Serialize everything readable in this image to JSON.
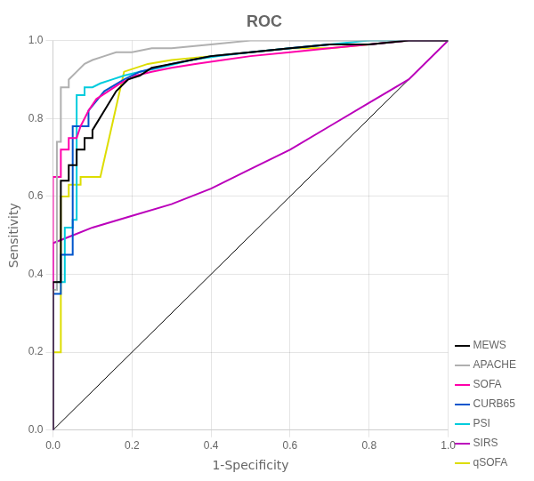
{
  "chart_data": {
    "type": "line",
    "title": "ROC",
    "xlabel": "1-Specificity",
    "ylabel": "Sensitivity",
    "xlim": [
      0,
      1
    ],
    "ylim": [
      0,
      1
    ],
    "xticks": [
      {
        "value": 0,
        "label": "0.0"
      },
      0.2,
      0.4,
      0.6,
      0.8,
      {
        "value": 1,
        "label": "1.0"
      }
    ],
    "yticks": [
      {
        "value": 0,
        "label": "0.0"
      },
      0.2,
      0.4,
      0.6,
      0.8,
      {
        "value": 1,
        "label": "1.0"
      }
    ],
    "grid": true,
    "legend": "lower right",
    "series": [
      {
        "color": "#000000",
        "x": [
          0,
          1
        ],
        "values": [
          0,
          1
        ]
      },
      {
        "name": "MEWS",
        "color": "#000000",
        "x": [
          0.0,
          0.0,
          0.02,
          0.02,
          0.04,
          0.04,
          0.06,
          0.06,
          0.08,
          0.08,
          0.1,
          0.1,
          0.13,
          0.16,
          0.19,
          0.22,
          0.25,
          0.3,
          0.35,
          0.4,
          0.5,
          0.6,
          0.7,
          0.8,
          0.9,
          1.0
        ],
        "values": [
          0.0,
          0.38,
          0.38,
          0.64,
          0.64,
          0.68,
          0.68,
          0.72,
          0.72,
          0.75,
          0.75,
          0.77,
          0.82,
          0.87,
          0.9,
          0.91,
          0.93,
          0.94,
          0.95,
          0.96,
          0.97,
          0.98,
          0.99,
          0.99,
          1.0,
          1.0
        ]
      },
      {
        "name": "APACHE",
        "color": "#b0b0b0",
        "x": [
          0.0,
          0.0,
          0.01,
          0.01,
          0.02,
          0.02,
          0.04,
          0.04,
          0.06,
          0.08,
          0.1,
          0.13,
          0.16,
          0.2,
          0.25,
          0.3,
          0.4,
          0.5,
          0.6,
          0.7,
          0.8,
          0.9,
          1.0
        ],
        "values": [
          0.0,
          0.36,
          0.36,
          0.74,
          0.74,
          0.88,
          0.88,
          0.9,
          0.92,
          0.94,
          0.95,
          0.96,
          0.97,
          0.97,
          0.98,
          0.98,
          0.99,
          1.0,
          1.0,
          1.0,
          1.0,
          1.0,
          1.0
        ]
      },
      {
        "name": "SOFA",
        "color": "#ff00aa",
        "x": [
          0.0,
          0.0,
          0.02,
          0.02,
          0.04,
          0.04,
          0.06,
          0.07,
          0.09,
          0.11,
          0.14,
          0.17,
          0.21,
          0.25,
          0.3,
          0.36,
          0.43,
          0.5,
          0.6,
          0.7,
          0.8,
          0.9,
          1.0
        ],
        "values": [
          0.0,
          0.65,
          0.65,
          0.72,
          0.72,
          0.75,
          0.75,
          0.78,
          0.82,
          0.85,
          0.87,
          0.89,
          0.91,
          0.92,
          0.93,
          0.94,
          0.95,
          0.96,
          0.97,
          0.98,
          0.99,
          1.0,
          1.0
        ]
      },
      {
        "name": "CURB65",
        "color": "#0055cc",
        "x": [
          0.0,
          0.0,
          0.02,
          0.02,
          0.05,
          0.05,
          0.09,
          0.09,
          0.13,
          0.18,
          0.22,
          0.26,
          0.3,
          0.35,
          0.4,
          0.5,
          0.6,
          0.7,
          0.8,
          0.9,
          1.0
        ],
        "values": [
          0.0,
          0.35,
          0.35,
          0.45,
          0.45,
          0.78,
          0.78,
          0.82,
          0.87,
          0.9,
          0.92,
          0.93,
          0.94,
          0.95,
          0.96,
          0.97,
          0.98,
          0.99,
          0.99,
          1.0,
          1.0
        ]
      },
      {
        "name": "PSI",
        "color": "#00ccdd",
        "x": [
          0.0,
          0.0,
          0.01,
          0.01,
          0.03,
          0.03,
          0.05,
          0.05,
          0.06,
          0.06,
          0.08,
          0.08,
          0.1,
          0.12,
          0.15,
          0.18,
          0.22,
          0.27,
          0.35,
          0.42,
          0.5,
          0.6,
          0.7,
          0.8,
          0.9,
          1.0
        ],
        "values": [
          0.0,
          0.36,
          0.36,
          0.38,
          0.38,
          0.52,
          0.52,
          0.54,
          0.54,
          0.86,
          0.86,
          0.88,
          0.88,
          0.89,
          0.9,
          0.91,
          0.92,
          0.93,
          0.95,
          0.96,
          0.97,
          0.98,
          0.99,
          1.0,
          1.0,
          1.0
        ]
      },
      {
        "name": "SIRS",
        "color": "#bb00bb",
        "x": [
          0.0,
          0.0,
          0.05,
          0.1,
          0.2,
          0.3,
          0.4,
          0.5,
          0.6,
          0.7,
          0.8,
          0.9,
          1.0
        ],
        "values": [
          0.0,
          0.48,
          0.5,
          0.52,
          0.55,
          0.58,
          0.62,
          0.67,
          0.72,
          0.78,
          0.84,
          0.9,
          1.0
        ]
      },
      {
        "name": "qSOFA",
        "color": "#dddd00",
        "x": [
          0.0,
          0.0,
          0.02,
          0.02,
          0.04,
          0.04,
          0.07,
          0.07,
          0.12,
          0.18,
          0.24,
          0.3,
          0.4,
          0.5,
          0.6,
          0.7,
          0.8,
          0.9,
          1.0
        ],
        "values": [
          0.0,
          0.2,
          0.2,
          0.6,
          0.6,
          0.63,
          0.63,
          0.65,
          0.65,
          0.92,
          0.94,
          0.95,
          0.96,
          0.97,
          0.98,
          0.98,
          0.99,
          1.0,
          1.0
        ]
      }
    ]
  }
}
